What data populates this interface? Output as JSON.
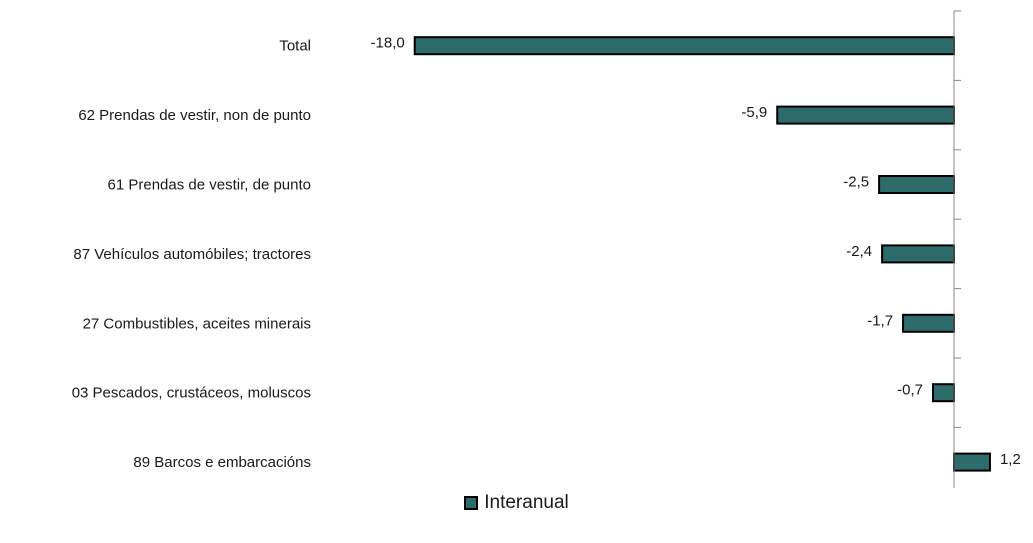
{
  "chart_data": {
    "type": "bar",
    "orientation": "horizontal",
    "categories": [
      "Total",
      "62 Prendas de vestir, non de punto",
      "61 Prendas de vestir, de punto",
      "87 Vehículos automóbiles; tractores",
      "27 Combustibles, aceites minerais",
      "03 Pescados, crustáceos, moluscos",
      "89 Barcos e embarcacións"
    ],
    "value_labels": [
      "-18,0",
      "-5,9",
      "-2,5",
      "-2,4",
      "-1,7",
      "-0,7",
      "1,2"
    ],
    "series": [
      {
        "name": "Interanual",
        "values": [
          -18.0,
          -5.9,
          -2.5,
          -2.4,
          -1.7,
          -0.7,
          1.2
        ]
      }
    ],
    "xlim": [
      -18.0,
      1.2
    ],
    "grid": false,
    "legend_position": "bottom",
    "colors": {
      "bar": "#2e6b6b",
      "bar_border": "#000000",
      "axis": "#888888"
    }
  }
}
